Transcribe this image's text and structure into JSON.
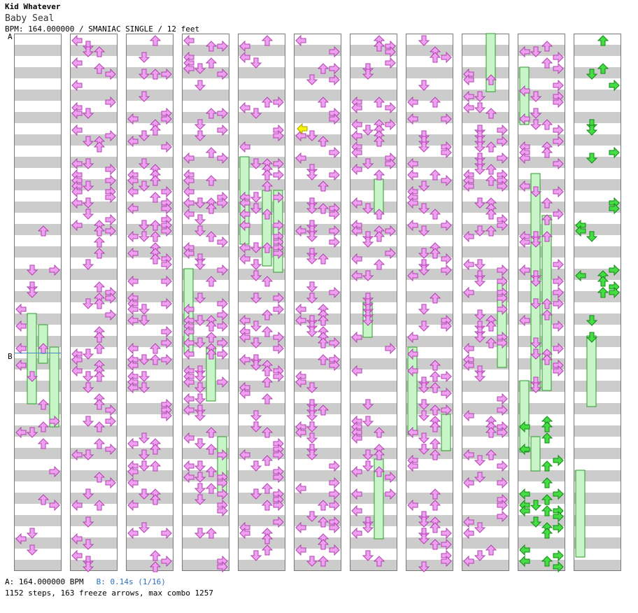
{
  "song": {
    "artist": "Kid Whatever",
    "title": "Baby Seal",
    "meta": "BPM: 164.000000 / SMANIAC SINGLE / 12 feet"
  },
  "markers": {
    "a": "A",
    "b": "B"
  },
  "footer": {
    "bpm": "A: 164.000000 BPM",
    "stop": "B: 0.14s (1/16)",
    "stats": "1152 steps, 163 freeze arrows, max combo 1257"
  },
  "legend_colors": {
    "quarter": "#f08080",
    "eighth": "#5aa0e8",
    "sixteenth": "#f0a0f0",
    "freeze": "#c8f5c8",
    "freeze_tail": "#44dd44",
    "stripe": "#cccccc",
    "bpm_change": "#f5f500"
  },
  "chart_data": {
    "type": "other",
    "columns": 11,
    "step_total": 1152,
    "freeze_total": 163,
    "max_combo": 1257,
    "lanes": [
      "left",
      "down",
      "up",
      "right"
    ]
  }
}
